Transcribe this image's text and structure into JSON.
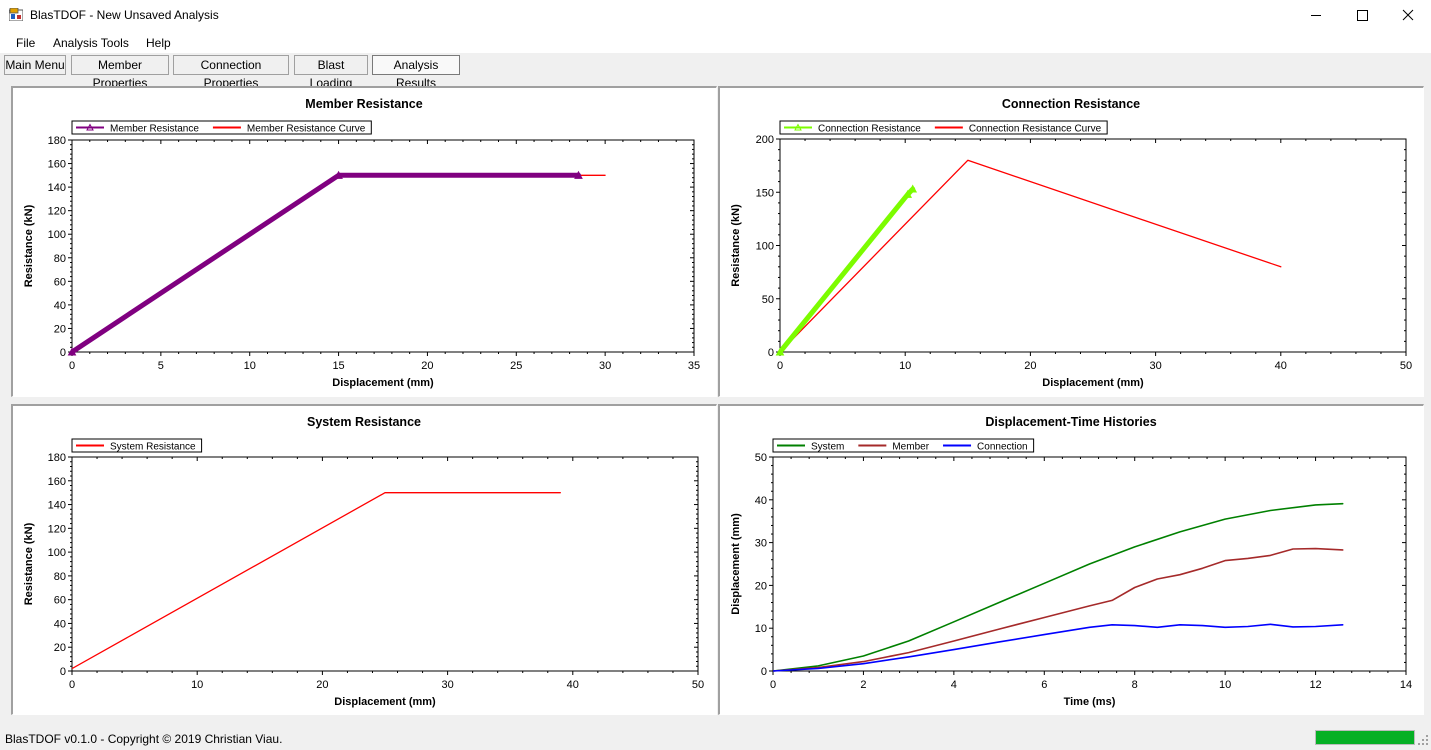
{
  "window": {
    "title": "BlasTDOF - New Unsaved Analysis"
  },
  "menu": [
    "File",
    "Analysis Tools",
    "Help"
  ],
  "tabs": [
    {
      "label": "Main Menu",
      "active": false
    },
    {
      "label": "Member Properties",
      "active": false
    },
    {
      "label": "Connection Properties",
      "active": false
    },
    {
      "label": "Blast Loading",
      "active": false
    },
    {
      "label": "Analysis Results",
      "active": true
    }
  ],
  "status": {
    "text": "BlasTDOF v0.1.0 - Copyright © 2019 Christian Viau.",
    "progress": 1.0
  },
  "chart_data": [
    {
      "type": "line",
      "title": "Member Resistance",
      "xlabel": "Displacement (mm)",
      "ylabel": "Resistance (kN)",
      "xlim": [
        0,
        35
      ],
      "ylim": [
        0,
        180
      ],
      "xticks": [
        0,
        5,
        10,
        15,
        20,
        25,
        30,
        35
      ],
      "yticks": [
        0,
        20,
        40,
        60,
        80,
        100,
        120,
        140,
        160,
        180
      ],
      "legend_position": "top-left",
      "series": [
        {
          "name": "Member Resistance Curve",
          "color": "#ff0000",
          "width": 1.3,
          "x": [
            0,
            15,
            30
          ],
          "y": [
            0,
            150,
            150
          ]
        },
        {
          "name": "Member Resistance",
          "color": "#800080",
          "width": 5,
          "marker": "triangle",
          "x": [
            0,
            15,
            28.5
          ],
          "y": [
            0,
            150,
            150
          ]
        }
      ]
    },
    {
      "type": "line",
      "title": "Connection Resistance",
      "xlabel": "Displacement (mm)",
      "ylabel": "Resistance (kN)",
      "xlim": [
        0,
        50
      ],
      "ylim": [
        0,
        200
      ],
      "xticks": [
        0,
        10,
        20,
        30,
        40,
        50
      ],
      "yticks": [
        0,
        50,
        100,
        150,
        200
      ],
      "legend_position": "top-left",
      "series": [
        {
          "name": "Connection Resistance Curve",
          "color": "#ff0000",
          "width": 1.3,
          "x": [
            0,
            15,
            40
          ],
          "y": [
            0,
            180,
            80
          ]
        },
        {
          "name": "Connection Resistance",
          "color": "#7cfc00",
          "width": 5,
          "marker": "triangle",
          "x": [
            0,
            10.2,
            10.6
          ],
          "y": [
            0,
            148,
            153
          ]
        }
      ]
    },
    {
      "type": "line",
      "title": "System Resistance",
      "xlabel": "Displacement (mm)",
      "ylabel": "Resistance (kN)",
      "xlim": [
        0,
        50
      ],
      "ylim": [
        0,
        180
      ],
      "xticks": [
        0,
        10,
        20,
        30,
        40,
        50
      ],
      "yticks": [
        0,
        20,
        40,
        60,
        80,
        100,
        120,
        140,
        160,
        180
      ],
      "legend_position": "top-left",
      "series": [
        {
          "name": "System Resistance",
          "color": "#ff0000",
          "width": 1.3,
          "x": [
            0,
            25,
            39
          ],
          "y": [
            2,
            150,
            150
          ]
        }
      ]
    },
    {
      "type": "line",
      "title": "Displacement-Time Histories",
      "xlabel": "Time (ms)",
      "ylabel": "Displacement (mm)",
      "xlim": [
        0,
        14
      ],
      "ylim": [
        0,
        50
      ],
      "xticks": [
        0,
        2,
        4,
        6,
        8,
        10,
        12,
        14
      ],
      "yticks": [
        0,
        10,
        20,
        30,
        40,
        50
      ],
      "legend_position": "top-left",
      "series": [
        {
          "name": "System",
          "color": "#008000",
          "width": 1.6,
          "x": [
            0,
            1,
            2,
            3,
            4,
            5,
            6,
            7,
            8,
            9,
            10,
            11,
            12,
            12.6
          ],
          "y": [
            0,
            1.2,
            3.5,
            7,
            11.5,
            16,
            20.5,
            25,
            29,
            32.5,
            35.5,
            37.5,
            38.8,
            39.1
          ]
        },
        {
          "name": "Member",
          "color": "#a52a2a",
          "width": 1.6,
          "x": [
            0,
            1,
            2,
            3,
            4,
            5,
            6,
            7,
            7.5,
            8,
            8.5,
            9,
            9.5,
            10,
            10.5,
            11,
            11.5,
            12,
            12.6
          ],
          "y": [
            0,
            0.8,
            2.2,
            4.3,
            7,
            9.8,
            12.5,
            15.2,
            16.5,
            19.5,
            21.5,
            22.5,
            24,
            25.8,
            26.3,
            27,
            28.5,
            28.6,
            28.3
          ]
        },
        {
          "name": "Connection",
          "color": "#0000ff",
          "width": 1.6,
          "x": [
            0,
            1,
            2,
            3,
            4,
            5,
            6,
            7,
            7.5,
            8,
            8.5,
            9,
            9.5,
            10,
            10.5,
            11,
            11.5,
            12,
            12.6
          ],
          "y": [
            0,
            0.6,
            1.7,
            3.3,
            5,
            6.8,
            8.5,
            10.2,
            10.8,
            10.6,
            10.2,
            10.8,
            10.6,
            10.2,
            10.4,
            10.9,
            10.3,
            10.4,
            10.8
          ]
        }
      ]
    }
  ]
}
